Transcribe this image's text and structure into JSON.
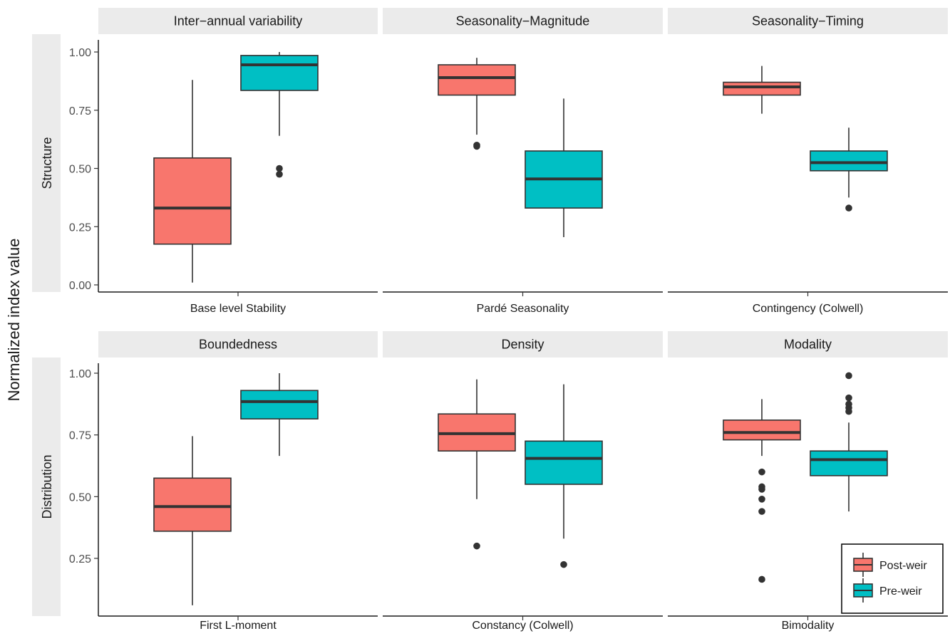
{
  "chart_data": {
    "type": "box",
    "ylabel": "Normalized index value",
    "rows": [
      "Structure",
      "Distribution"
    ],
    "legend": {
      "position": "bottom-right",
      "entries": [
        {
          "name": "Post-weir",
          "color": "#F8766D"
        },
        {
          "name": "Pre-weir",
          "color": "#00BFC4"
        }
      ]
    },
    "row_axes": [
      {
        "ylim": [
          -0.03,
          1.045
        ],
        "ticks": [
          0,
          0.25,
          0.5,
          0.75,
          1.0
        ],
        "tick_labels": [
          "0.00",
          "0.25",
          "0.50",
          "0.75",
          "1.00"
        ]
      },
      {
        "ylim": [
          0.045,
          1.045
        ],
        "ticks": [
          0.25,
          0.5,
          0.75,
          1.0
        ],
        "tick_labels": [
          "0.25",
          "0.50",
          "0.75",
          "1.00"
        ]
      }
    ],
    "panels": [
      {
        "title": "Inter−annual variability",
        "category": "Base level Stability",
        "row": 0,
        "boxes": [
          {
            "group": "Post-weir",
            "q1": 0.175,
            "median": 0.33,
            "q3": 0.545,
            "whisker_low": 0.01,
            "whisker_high": 0.88,
            "outliers": []
          },
          {
            "group": "Pre-weir",
            "q1": 0.835,
            "median": 0.945,
            "q3": 0.985,
            "whisker_low": 0.64,
            "whisker_high": 1.0,
            "outliers": [
              0.5,
              0.475
            ]
          }
        ]
      },
      {
        "title": "Seasonality−Magnitude",
        "category": "Pardé Seasonality",
        "row": 0,
        "boxes": [
          {
            "group": "Post-weir",
            "q1": 0.815,
            "median": 0.89,
            "q3": 0.945,
            "whisker_low": 0.645,
            "whisker_high": 0.975,
            "outliers": [
              0.6,
              0.595
            ]
          },
          {
            "group": "Pre-weir",
            "q1": 0.33,
            "median": 0.455,
            "q3": 0.575,
            "whisker_low": 0.205,
            "whisker_high": 0.8,
            "outliers": []
          }
        ]
      },
      {
        "title": "Seasonality−Timing",
        "category": "Contingency (Colwell)",
        "row": 0,
        "boxes": [
          {
            "group": "Post-weir",
            "q1": 0.815,
            "median": 0.85,
            "q3": 0.87,
            "whisker_low": 0.735,
            "whisker_high": 0.94,
            "outliers": []
          },
          {
            "group": "Pre-weir",
            "q1": 0.49,
            "median": 0.525,
            "q3": 0.575,
            "whisker_low": 0.375,
            "whisker_high": 0.675,
            "outliers": [
              0.33
            ]
          }
        ]
      },
      {
        "title": "Boundedness",
        "category": "First L-moment",
        "row": 1,
        "boxes": [
          {
            "group": "Post-weir",
            "q1": 0.36,
            "median": 0.46,
            "q3": 0.575,
            "whisker_low": 0.06,
            "whisker_high": 0.745,
            "outliers": []
          },
          {
            "group": "Pre-weir",
            "q1": 0.815,
            "median": 0.885,
            "q3": 0.93,
            "whisker_low": 0.665,
            "whisker_high": 1.0,
            "outliers": []
          }
        ]
      },
      {
        "title": "Density",
        "category": "Constancy (Colwell)",
        "row": 1,
        "boxes": [
          {
            "group": "Post-weir",
            "q1": 0.685,
            "median": 0.755,
            "q3": 0.835,
            "whisker_low": 0.49,
            "whisker_high": 0.975,
            "outliers": [
              0.3
            ]
          },
          {
            "group": "Pre-weir",
            "q1": 0.55,
            "median": 0.655,
            "q3": 0.725,
            "whisker_low": 0.33,
            "whisker_high": 0.955,
            "outliers": [
              0.225
            ]
          }
        ]
      },
      {
        "title": "Modality",
        "category": "Bimodality",
        "row": 1,
        "boxes": [
          {
            "group": "Post-weir",
            "q1": 0.73,
            "median": 0.76,
            "q3": 0.81,
            "whisker_low": 0.665,
            "whisker_high": 0.895,
            "outliers": [
              0.6,
              0.54,
              0.53,
              0.49,
              0.44,
              0.165
            ]
          },
          {
            "group": "Pre-weir",
            "q1": 0.585,
            "median": 0.65,
            "q3": 0.685,
            "whisker_low": 0.44,
            "whisker_high": 0.8,
            "outliers": [
              0.99,
              0.9,
              0.875,
              0.86,
              0.845
            ]
          }
        ]
      }
    ]
  }
}
